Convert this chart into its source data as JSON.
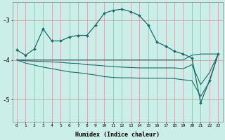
{
  "xlabel": "Humidex (Indice chaleur)",
  "bg_color": "#cceee8",
  "line_color": "#1a6b6b",
  "grid_color": "#cc9999",
  "xlim": [
    -0.5,
    23.5
  ],
  "ylim": [
    -5.55,
    -2.55
  ],
  "yticks": [
    -5,
    -4,
    -3
  ],
  "xticks": [
    0,
    1,
    2,
    3,
    4,
    5,
    6,
    7,
    8,
    9,
    10,
    11,
    12,
    13,
    14,
    15,
    16,
    17,
    18,
    19,
    20,
    21,
    22,
    23
  ],
  "main_line": [
    -3.75,
    -3.88,
    -3.72,
    -3.22,
    -3.52,
    -3.52,
    -3.42,
    -3.38,
    -3.38,
    -3.12,
    -2.82,
    -2.75,
    -2.72,
    -2.78,
    -2.88,
    -3.12,
    -3.55,
    -3.65,
    -3.78,
    -3.85,
    -3.95,
    -5.08,
    -4.52,
    -3.85
  ],
  "flat_line1": [
    -4.0,
    -4.0,
    -4.0,
    -4.0,
    -4.0,
    -4.0,
    -4.0,
    -4.0,
    -4.0,
    -4.0,
    -4.0,
    -4.0,
    -4.0,
    -4.0,
    -4.0,
    -4.0,
    -4.0,
    -4.0,
    -4.0,
    -4.0,
    -3.88,
    -3.85,
    -3.85,
    -3.85
  ],
  "flat_line2": [
    -4.0,
    -4.02,
    -4.03,
    -4.04,
    -4.05,
    -4.06,
    -4.08,
    -4.09,
    -4.12,
    -4.13,
    -4.15,
    -4.17,
    -4.18,
    -4.19,
    -4.2,
    -4.2,
    -4.2,
    -4.2,
    -4.2,
    -4.22,
    -4.12,
    -4.62,
    -4.32,
    -3.85
  ],
  "flat_line3": [
    -4.0,
    -4.08,
    -4.13,
    -4.18,
    -4.22,
    -4.26,
    -4.3,
    -4.32,
    -4.35,
    -4.38,
    -4.42,
    -4.44,
    -4.45,
    -4.45,
    -4.46,
    -4.46,
    -4.46,
    -4.46,
    -4.47,
    -4.5,
    -4.52,
    -4.92,
    -4.55,
    -3.85
  ]
}
